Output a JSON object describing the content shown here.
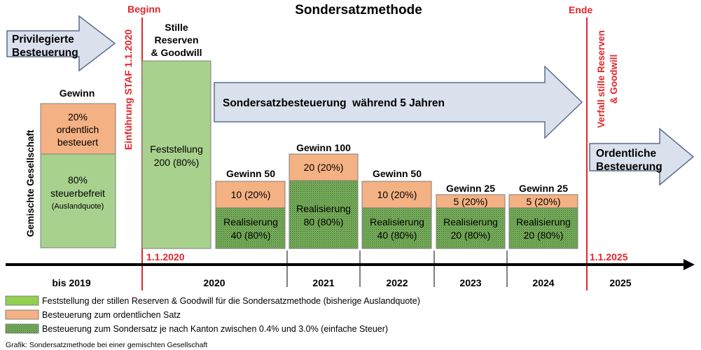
{
  "title": "Sondersatzmethode",
  "markers": {
    "begin": "Beginn",
    "end": "Ende",
    "date_begin": "1.1.2020",
    "date_end": "1.1.2025"
  },
  "vertical_labels": {
    "company": "Gemischte Gesellschaft",
    "staf": "Einführung STAF 1.1.2020",
    "verfall_line1": "Verfall stille Reserven",
    "verfall_line2": "& Goodwill"
  },
  "arrows": {
    "privileged": [
      "Privilegierte",
      "Besteuerung"
    ],
    "special": "Sondersatzbesteuerung  während 5 Jahren",
    "ordinary": [
      "Ordentliche",
      "Besteuerung"
    ]
  },
  "before": {
    "heading": "Gewinn",
    "ordinary_box": [
      "20%",
      "ordentlich",
      "besteuert"
    ],
    "exempt_box": [
      "80%",
      "steuerbefreit",
      "(Auslandquote)"
    ]
  },
  "feststellung": {
    "heading": [
      "Stille",
      "Reserven",
      "& Goodwill"
    ],
    "box": [
      "Feststellung",
      "200 (80%)"
    ]
  },
  "years": [
    {
      "heading": "Gewinn 50",
      "ordinary": "10 (20%)",
      "special": [
        "Realisierung",
        "40 (80%)"
      ]
    },
    {
      "heading": "Gewinn 100",
      "ordinary": "20 (20%)",
      "special": [
        "Realisierung",
        "80 (80%)"
      ]
    },
    {
      "heading": "Gewinn 50",
      "ordinary": "10 (20%)",
      "special": [
        "Realisierung",
        "40 (80%)"
      ]
    },
    {
      "heading": "Gewinn 25",
      "ordinary": "5 (20%)",
      "special": [
        "Realisierung",
        "20 (80%)"
      ]
    },
    {
      "heading": "Gewinn 25",
      "ordinary": "5 (20%)",
      "special": [
        "Realisierung",
        "20 (80%)"
      ]
    }
  ],
  "timeline": [
    "bis 2019",
    "2020",
    "2021",
    "2022",
    "2023",
    "2024",
    "2025"
  ],
  "legend": [
    {
      "label": "Feststellung der stillen Reserven & Goodwill für die Sondersatzmethode (bisherige Auslandquote)",
      "color": "#92D050"
    },
    {
      "label": "Besteuerung zum ordentlichen Satz",
      "color": "#F4B183"
    },
    {
      "label": "Besteuerung zum Sondersatz je nach Kanton zwischen 0.4% und 3.0% (einfache Steuer)",
      "color": "#84B86B"
    }
  ],
  "caption": "Grafik: Sondersatzmethode bei einer gemischten Gesellschaft",
  "colors": {
    "red": "#E3262B",
    "green": "#A9D18E",
    "orange": "#F4B183",
    "arrow_fill": "#DAE0EC",
    "arrow_stroke": "#5B6E8C"
  }
}
